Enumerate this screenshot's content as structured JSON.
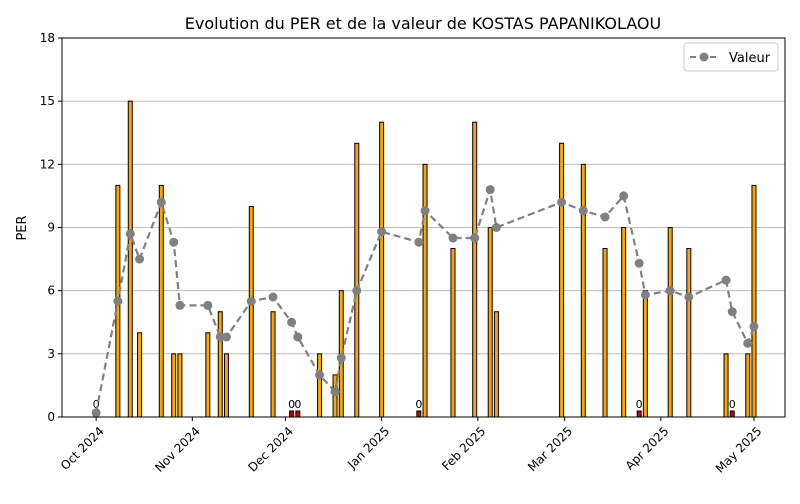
{
  "chart_data": {
    "type": "bar",
    "title": "Evolution du PER et de la valeur de KOSTAS PAPANIKOLAOU",
    "ylabel": "PER",
    "xlabel": "",
    "ylim": [
      0,
      18
    ],
    "yticks": [
      0,
      3,
      6,
      9,
      12,
      15,
      18
    ],
    "xlim": [
      "2024-09-20",
      "2025-05-11"
    ],
    "xticks": [
      {
        "date": "2024-10-01",
        "label": "Oct 2024"
      },
      {
        "date": "2024-11-01",
        "label": "Nov 2024"
      },
      {
        "date": "2024-12-01",
        "label": "Dec 2024"
      },
      {
        "date": "2025-01-01",
        "label": "Jan 2025"
      },
      {
        "date": "2025-02-01",
        "label": "Feb 2025"
      },
      {
        "date": "2025-03-01",
        "label": "Mar 2025"
      },
      {
        "date": "2025-04-01",
        "label": "Apr 2025"
      },
      {
        "date": "2025-05-01",
        "label": "May 2025"
      }
    ],
    "grid": "horizontal",
    "legend_position": "top-right",
    "bar_colors": {
      "positive": "#FFA500",
      "zero": "#CC0000"
    },
    "bars": [
      {
        "date": "2024-10-01",
        "value": 0,
        "label": "0"
      },
      {
        "date": "2024-10-08",
        "value": 11
      },
      {
        "date": "2024-10-12",
        "value": 15
      },
      {
        "date": "2024-10-15",
        "value": 4
      },
      {
        "date": "2024-10-22",
        "value": 11
      },
      {
        "date": "2024-10-26",
        "value": 3
      },
      {
        "date": "2024-10-28",
        "value": 3
      },
      {
        "date": "2024-11-06",
        "value": 4
      },
      {
        "date": "2024-11-10",
        "value": 5
      },
      {
        "date": "2024-11-12",
        "value": 3
      },
      {
        "date": "2024-11-20",
        "value": 10
      },
      {
        "date": "2024-11-27",
        "value": 5
      },
      {
        "date": "2024-12-03",
        "value": 0,
        "label": "0"
      },
      {
        "date": "2024-12-05",
        "value": 0,
        "label": "0"
      },
      {
        "date": "2024-12-12",
        "value": 3
      },
      {
        "date": "2024-12-17",
        "value": 2
      },
      {
        "date": "2024-12-19",
        "value": 6
      },
      {
        "date": "2024-12-24",
        "value": 13
      },
      {
        "date": "2025-01-01",
        "value": 14
      },
      {
        "date": "2025-01-13",
        "value": 0,
        "label": "0"
      },
      {
        "date": "2025-01-15",
        "value": 12
      },
      {
        "date": "2025-01-24",
        "value": 8
      },
      {
        "date": "2025-01-31",
        "value": 14
      },
      {
        "date": "2025-02-05",
        "value": 9
      },
      {
        "date": "2025-02-07",
        "value": 5
      },
      {
        "date": "2025-02-28",
        "value": 13
      },
      {
        "date": "2025-03-07",
        "value": 12
      },
      {
        "date": "2025-03-14",
        "value": 8
      },
      {
        "date": "2025-03-20",
        "value": 9
      },
      {
        "date": "2025-03-25",
        "value": 0,
        "label": "0"
      },
      {
        "date": "2025-03-27",
        "value": 6
      },
      {
        "date": "2025-04-04",
        "value": 9
      },
      {
        "date": "2025-04-10",
        "value": 8
      },
      {
        "date": "2025-04-22",
        "value": 3
      },
      {
        "date": "2025-04-24",
        "value": 0,
        "label": "0"
      },
      {
        "date": "2025-04-29",
        "value": 3
      },
      {
        "date": "2025-05-01",
        "value": 11
      }
    ],
    "series": [
      {
        "name": "Valeur",
        "color": "#808080",
        "style": "dashed-line-with-circles",
        "points": [
          {
            "date": "2024-10-01",
            "value": 0.2
          },
          {
            "date": "2024-10-08",
            "value": 5.5
          },
          {
            "date": "2024-10-12",
            "value": 8.7
          },
          {
            "date": "2024-10-15",
            "value": 7.5
          },
          {
            "date": "2024-10-22",
            "value": 10.2
          },
          {
            "date": "2024-10-26",
            "value": 8.3
          },
          {
            "date": "2024-10-28",
            "value": 5.3
          },
          {
            "date": "2024-11-06",
            "value": 5.3
          },
          {
            "date": "2024-11-10",
            "value": 3.8
          },
          {
            "date": "2024-11-12",
            "value": 3.8
          },
          {
            "date": "2024-11-20",
            "value": 5.5
          },
          {
            "date": "2024-11-27",
            "value": 5.7
          },
          {
            "date": "2024-12-03",
            "value": 4.5
          },
          {
            "date": "2024-12-05",
            "value": 3.8
          },
          {
            "date": "2024-12-12",
            "value": 2.0
          },
          {
            "date": "2024-12-17",
            "value": 1.2
          },
          {
            "date": "2024-12-19",
            "value": 2.8
          },
          {
            "date": "2024-12-24",
            "value": 6.0
          },
          {
            "date": "2025-01-01",
            "value": 8.8
          },
          {
            "date": "2025-01-13",
            "value": 8.3
          },
          {
            "date": "2025-01-15",
            "value": 9.8
          },
          {
            "date": "2025-01-24",
            "value": 8.5
          },
          {
            "date": "2025-01-31",
            "value": 8.5
          },
          {
            "date": "2025-02-05",
            "value": 10.8
          },
          {
            "date": "2025-02-07",
            "value": 9.0
          },
          {
            "date": "2025-02-28",
            "value": 10.2
          },
          {
            "date": "2025-03-07",
            "value": 9.8
          },
          {
            "date": "2025-03-14",
            "value": 9.5
          },
          {
            "date": "2025-03-20",
            "value": 10.5
          },
          {
            "date": "2025-03-25",
            "value": 7.3
          },
          {
            "date": "2025-03-27",
            "value": 5.8
          },
          {
            "date": "2025-04-04",
            "value": 6.0
          },
          {
            "date": "2025-04-10",
            "value": 5.7
          },
          {
            "date": "2025-04-22",
            "value": 6.5
          },
          {
            "date": "2025-04-24",
            "value": 5.0
          },
          {
            "date": "2025-04-29",
            "value": 3.5
          },
          {
            "date": "2025-05-01",
            "value": 4.3
          }
        ]
      }
    ]
  }
}
